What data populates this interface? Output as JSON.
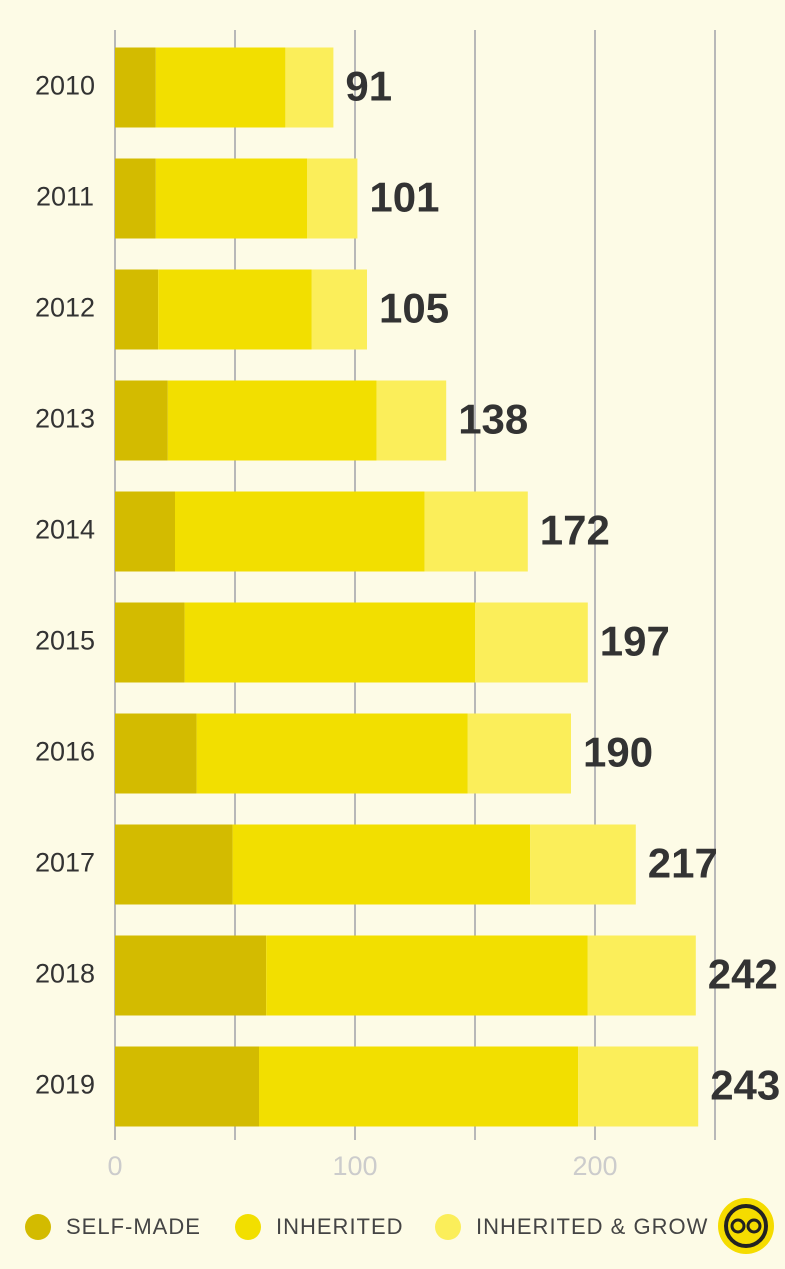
{
  "chart_data": {
    "type": "stacked-barh",
    "categories": [
      "2010",
      "2011",
      "2012",
      "2013",
      "2014",
      "2015",
      "2016",
      "2017",
      "2018",
      "2019"
    ],
    "series": [
      {
        "name": "SELF-MADE",
        "color": "#d3bb00",
        "values": [
          17,
          17,
          18,
          22,
          25,
          29,
          34,
          49,
          63,
          60
        ]
      },
      {
        "name": "INHERITED",
        "color": "#f2df00",
        "values": [
          54,
          63,
          64,
          87,
          104,
          121,
          113,
          124,
          134,
          133
        ]
      },
      {
        "name": "INHERITED & GROW",
        "color": "#fbee5a",
        "values": [
          20,
          21,
          23,
          29,
          43,
          47,
          43,
          44,
          45,
          50
        ]
      }
    ],
    "totals": [
      91,
      101,
      105,
      138,
      172,
      197,
      190,
      217,
      242,
      243
    ],
    "xlim": [
      0,
      250
    ],
    "xticks": [
      0,
      100,
      200
    ],
    "grid_lines": [
      0,
      50,
      100,
      150,
      200,
      250
    ],
    "grid": true,
    "legend": "bottom"
  }
}
